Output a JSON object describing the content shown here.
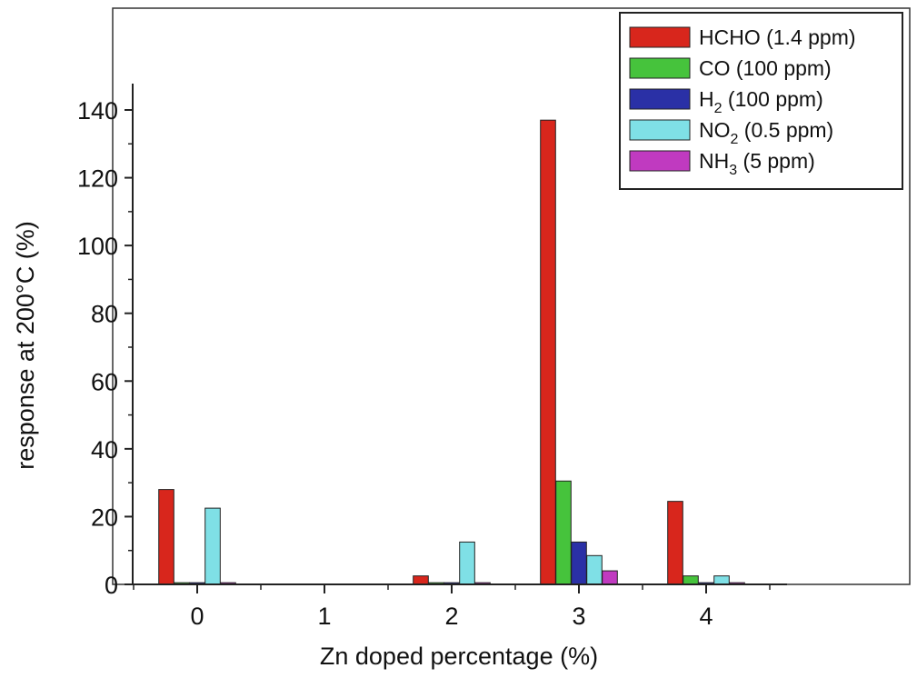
{
  "chart_data": {
    "type": "bar",
    "xlabel": "Zn doped percentage (%)",
    "ylabel": "response at 200°C (%)",
    "categories": [
      "0",
      "1",
      "2",
      "3",
      "4"
    ],
    "yticks": [
      "0",
      "20",
      "40",
      "60",
      "80",
      "100",
      "120",
      "140"
    ],
    "ylim": [
      0,
      153
    ],
    "grid": false,
    "legend_position": "top-right",
    "series": [
      {
        "name": "HCHO (1.4 ppm)",
        "label": {
          "base": "HCHO (1.4 ppm)",
          "sub": "",
          "tail": ""
        },
        "color": "#d8261c",
        "values": [
          28,
          0,
          2.5,
          137,
          24.5
        ]
      },
      {
        "name": "CO (100 ppm)",
        "label": {
          "base": "CO (100 ppm)",
          "sub": "",
          "tail": ""
        },
        "color": "#46c33c",
        "values": [
          0.5,
          0,
          0.5,
          30.5,
          2.5
        ]
      },
      {
        "name": "H2 (100 ppm)",
        "label": {
          "base": "H",
          "sub": "2",
          "tail": " (100 ppm)"
        },
        "color": "#2a30a6",
        "values": [
          0.5,
          0,
          0.5,
          12.5,
          0.5
        ]
      },
      {
        "name": "NO2 (0.5 ppm)",
        "label": {
          "base": "NO",
          "sub": "2",
          "tail": " (0.5 ppm)"
        },
        "color": "#7fe0e6",
        "values": [
          22.5,
          0,
          12.5,
          8.5,
          2.5
        ]
      },
      {
        "name": "NH3 (5 ppm)",
        "label": {
          "base": "NH",
          "sub": "3",
          "tail": " (5 ppm)"
        },
        "color": "#c03ac0",
        "values": [
          0.5,
          0,
          0.5,
          4,
          0.5
        ]
      }
    ]
  }
}
